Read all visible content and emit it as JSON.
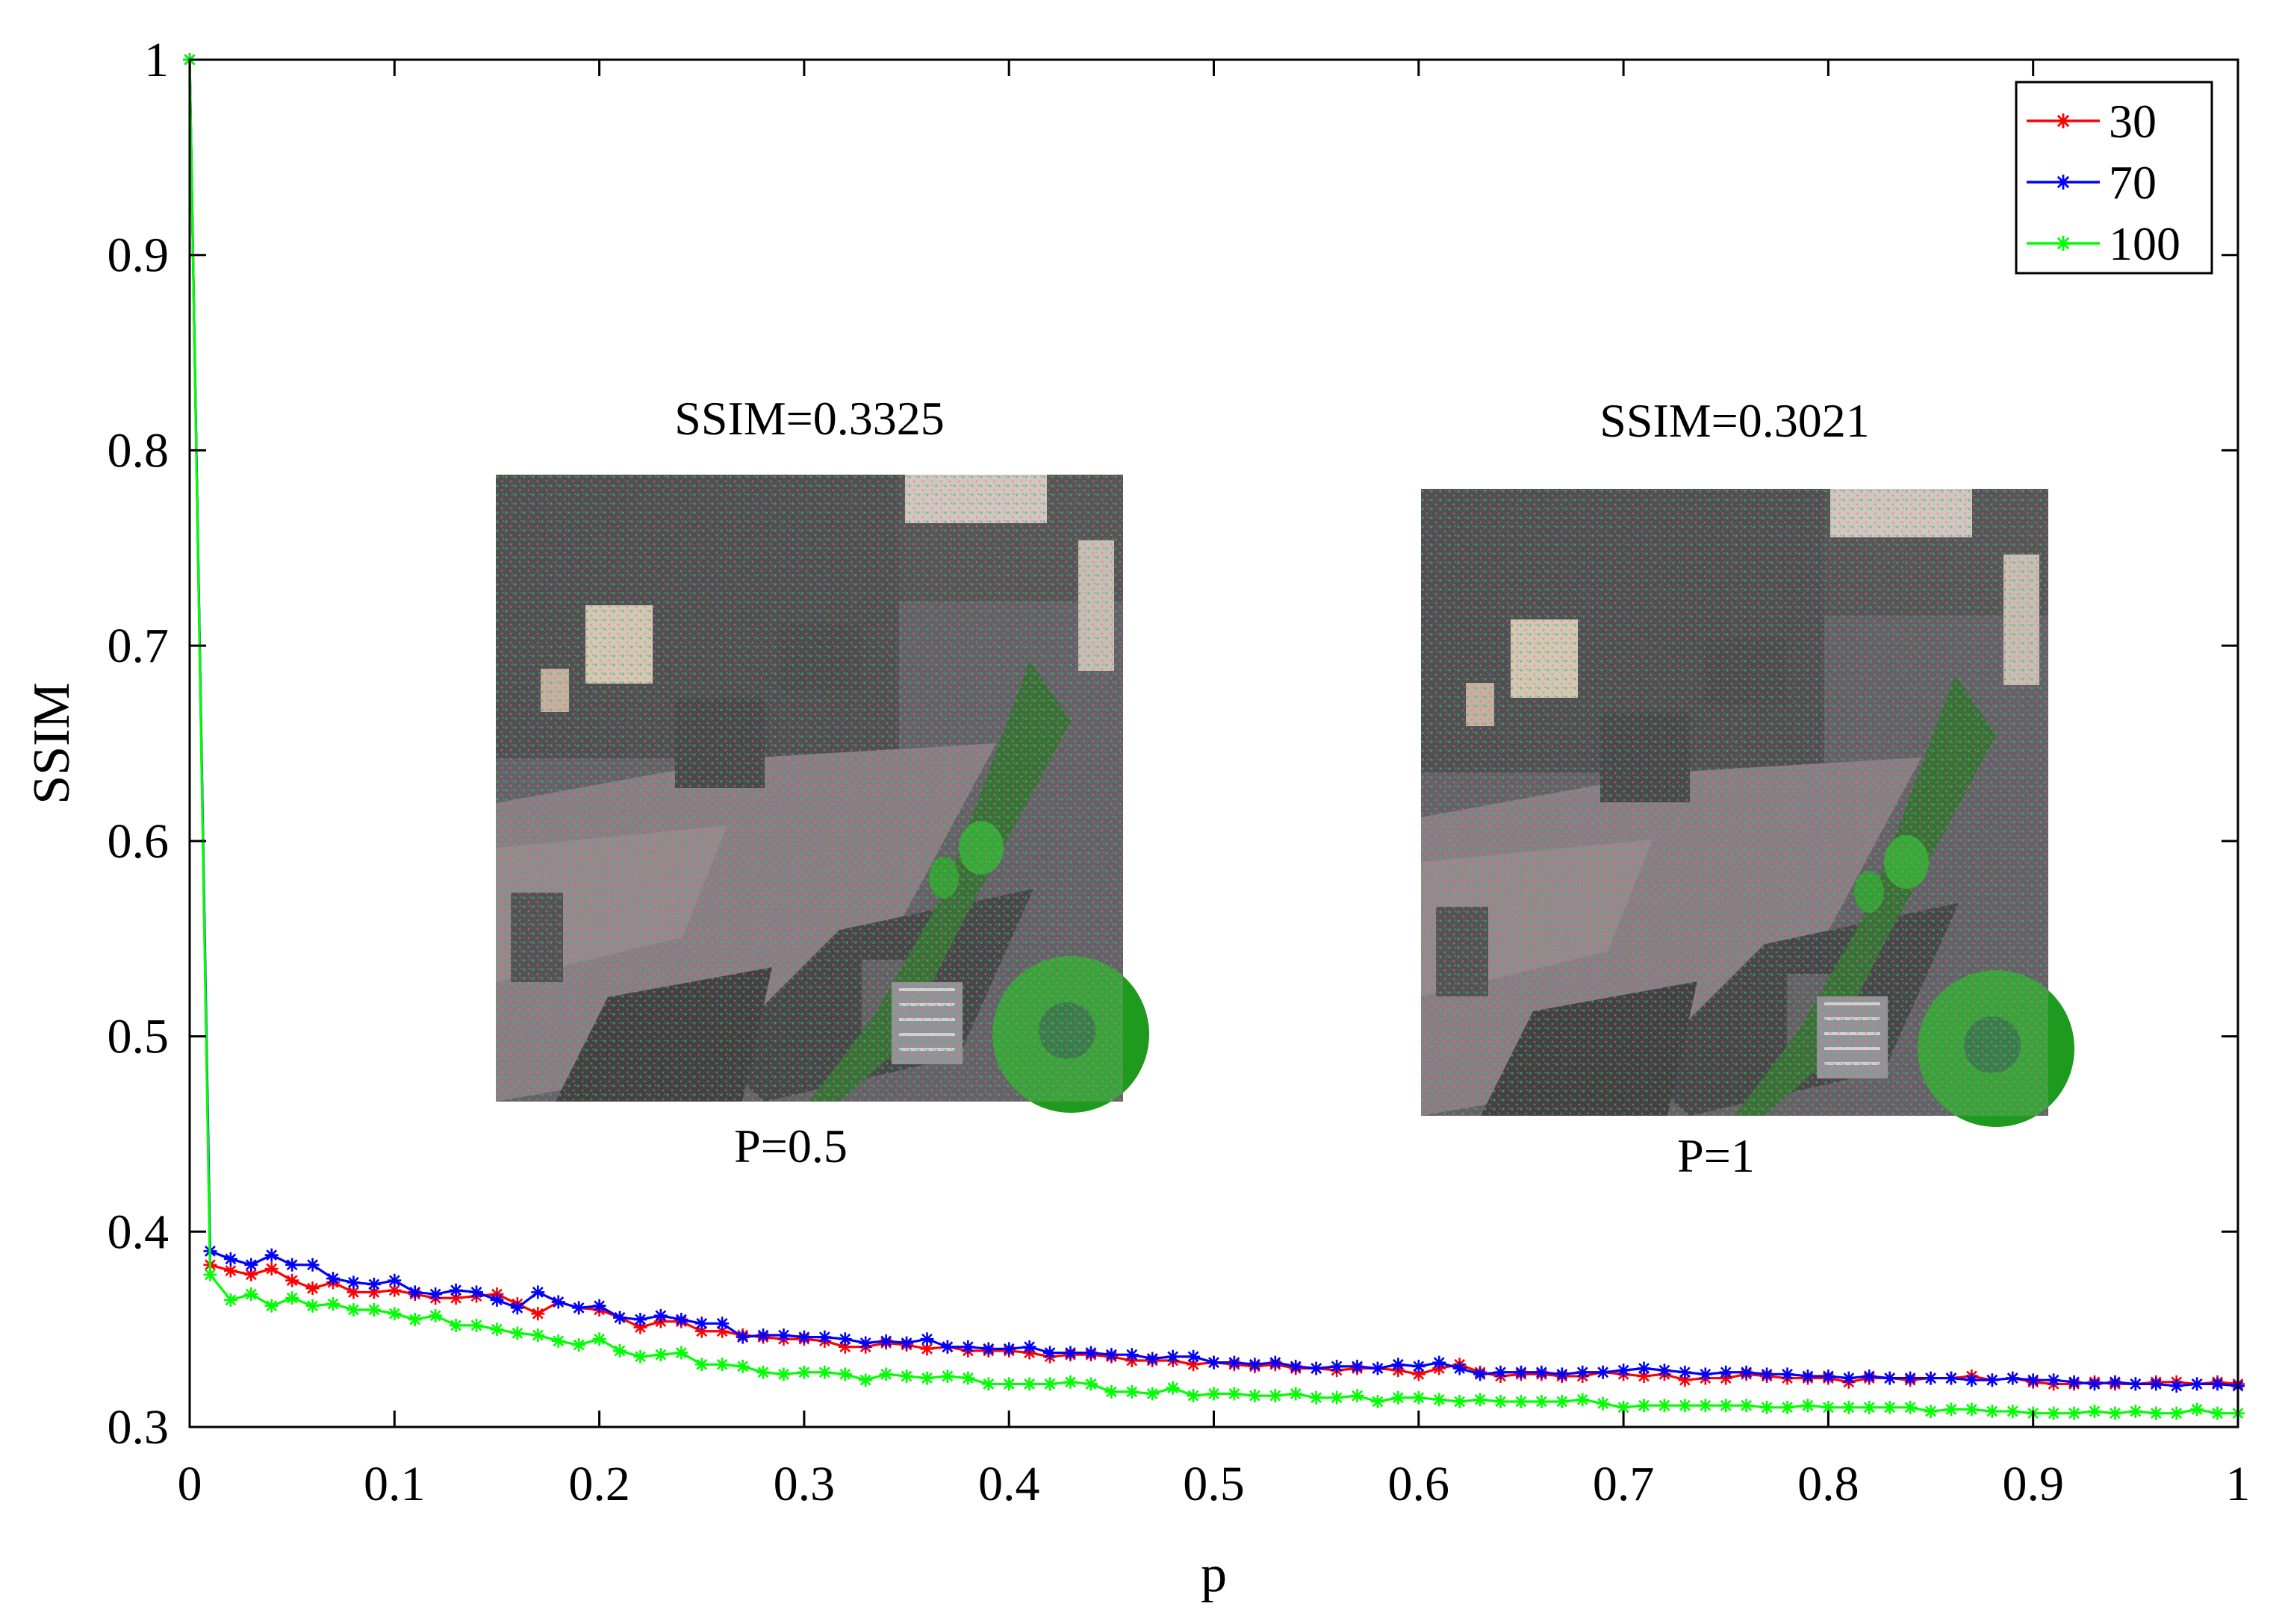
{
  "chart_data": {
    "type": "line",
    "title": "",
    "xlabel": "p",
    "ylabel": "SSIM",
    "xlim": [
      0,
      1
    ],
    "ylim": [
      0.3,
      1
    ],
    "x_ticks": [
      0,
      0.1,
      0.2,
      0.3,
      0.4,
      0.5,
      0.6,
      0.7,
      0.8,
      0.9,
      1
    ],
    "x_tick_labels": [
      "0",
      "0.1",
      "0.2",
      "0.3",
      "0.4",
      "0.5",
      "0.6",
      "0.7",
      "0.8",
      "0.9",
      "1"
    ],
    "y_ticks": [
      0.3,
      0.4,
      0.5,
      0.6,
      0.7,
      0.8,
      0.9,
      1
    ],
    "y_tick_labels": [
      "0.3",
      "0.4",
      "0.5",
      "0.6",
      "0.7",
      "0.8",
      "0.9",
      "1"
    ],
    "grid": false,
    "legend_position": "top-right",
    "marker": "asterisk",
    "series": [
      {
        "name": "30",
        "color": "#ff0000",
        "x": [
          0,
          0.01,
          0.02,
          0.03,
          0.04,
          0.05,
          0.06,
          0.07,
          0.08,
          0.09,
          0.1,
          0.11,
          0.12,
          0.13,
          0.14,
          0.15,
          0.16,
          0.17,
          0.18,
          0.19,
          0.2,
          0.21,
          0.22,
          0.23,
          0.24,
          0.25,
          0.26,
          0.27,
          0.28,
          0.29,
          0.3,
          0.31,
          0.32,
          0.33,
          0.34,
          0.35,
          0.36,
          0.37,
          0.38,
          0.39,
          0.4,
          0.41,
          0.42,
          0.43,
          0.44,
          0.45,
          0.46,
          0.47,
          0.48,
          0.49,
          0.5,
          0.51,
          0.52,
          0.53,
          0.54,
          0.55,
          0.56,
          0.57,
          0.58,
          0.59,
          0.6,
          0.61,
          0.62,
          0.63,
          0.64,
          0.65,
          0.66,
          0.67,
          0.68,
          0.69,
          0.7,
          0.71,
          0.72,
          0.73,
          0.74,
          0.75,
          0.76,
          0.77,
          0.78,
          0.79,
          0.8,
          0.81,
          0.82,
          0.83,
          0.84,
          0.85,
          0.86,
          0.87,
          0.88,
          0.89,
          0.9,
          0.91,
          0.92,
          0.93,
          0.94,
          0.95,
          0.96,
          0.97,
          0.98,
          0.99,
          1
        ],
        "values": [
          1.0,
          0.383,
          0.38,
          0.378,
          0.381,
          0.375,
          0.371,
          0.374,
          0.369,
          0.369,
          0.37,
          0.368,
          0.366,
          0.366,
          0.367,
          0.368,
          0.363,
          0.358,
          0.364,
          0.361,
          0.36,
          0.356,
          0.351,
          0.354,
          0.354,
          0.349,
          0.349,
          0.347,
          0.346,
          0.345,
          0.345,
          0.344,
          0.341,
          0.341,
          0.343,
          0.342,
          0.34,
          0.341,
          0.339,
          0.339,
          0.339,
          0.338,
          0.336,
          0.337,
          0.337,
          0.336,
          0.334,
          0.334,
          0.334,
          0.332,
          0.333,
          0.332,
          0.331,
          0.332,
          0.33,
          0.33,
          0.329,
          0.33,
          0.33,
          0.329,
          0.327,
          0.33,
          0.332,
          0.328,
          0.326,
          0.327,
          0.327,
          0.326,
          0.326,
          0.328,
          0.327,
          0.326,
          0.327,
          0.324,
          0.325,
          0.325,
          0.327,
          0.326,
          0.325,
          0.325,
          0.325,
          0.323,
          0.325,
          0.325,
          0.324,
          0.325,
          0.325,
          0.326,
          0.324,
          0.325,
          0.323,
          0.322,
          0.322,
          0.323,
          0.322,
          0.322,
          0.323,
          0.323,
          0.322,
          0.323,
          0.322
        ]
      },
      {
        "name": "70",
        "color": "#0000ff",
        "x": [
          0,
          0.01,
          0.02,
          0.03,
          0.04,
          0.05,
          0.06,
          0.07,
          0.08,
          0.09,
          0.1,
          0.11,
          0.12,
          0.13,
          0.14,
          0.15,
          0.16,
          0.17,
          0.18,
          0.19,
          0.2,
          0.21,
          0.22,
          0.23,
          0.24,
          0.25,
          0.26,
          0.27,
          0.28,
          0.29,
          0.3,
          0.31,
          0.32,
          0.33,
          0.34,
          0.35,
          0.36,
          0.37,
          0.38,
          0.39,
          0.4,
          0.41,
          0.42,
          0.43,
          0.44,
          0.45,
          0.46,
          0.47,
          0.48,
          0.49,
          0.5,
          0.51,
          0.52,
          0.53,
          0.54,
          0.55,
          0.56,
          0.57,
          0.58,
          0.59,
          0.6,
          0.61,
          0.62,
          0.63,
          0.64,
          0.65,
          0.66,
          0.67,
          0.68,
          0.69,
          0.7,
          0.71,
          0.72,
          0.73,
          0.74,
          0.75,
          0.76,
          0.77,
          0.78,
          0.79,
          0.8,
          0.81,
          0.82,
          0.83,
          0.84,
          0.85,
          0.86,
          0.87,
          0.88,
          0.89,
          0.9,
          0.91,
          0.92,
          0.93,
          0.94,
          0.95,
          0.96,
          0.97,
          0.98,
          0.99,
          1
        ],
        "values": [
          1.0,
          0.39,
          0.386,
          0.383,
          0.388,
          0.383,
          0.383,
          0.376,
          0.374,
          0.373,
          0.375,
          0.369,
          0.368,
          0.37,
          0.369,
          0.365,
          0.361,
          0.369,
          0.364,
          0.361,
          0.362,
          0.356,
          0.355,
          0.357,
          0.355,
          0.353,
          0.353,
          0.346,
          0.347,
          0.347,
          0.346,
          0.346,
          0.345,
          0.343,
          0.344,
          0.343,
          0.345,
          0.341,
          0.341,
          0.34,
          0.34,
          0.341,
          0.338,
          0.338,
          0.338,
          0.337,
          0.337,
          0.335,
          0.336,
          0.336,
          0.333,
          0.333,
          0.332,
          0.333,
          0.331,
          0.33,
          0.331,
          0.331,
          0.33,
          0.332,
          0.331,
          0.333,
          0.33,
          0.327,
          0.328,
          0.328,
          0.328,
          0.327,
          0.328,
          0.328,
          0.329,
          0.33,
          0.329,
          0.328,
          0.327,
          0.328,
          0.328,
          0.327,
          0.327,
          0.326,
          0.326,
          0.325,
          0.326,
          0.325,
          0.325,
          0.325,
          0.325,
          0.324,
          0.324,
          0.325,
          0.324,
          0.324,
          0.323,
          0.322,
          0.323,
          0.322,
          0.322,
          0.321,
          0.322,
          0.322,
          0.321
        ]
      },
      {
        "name": "100",
        "color": "#00ff00",
        "x": [
          0,
          0.01,
          0.02,
          0.03,
          0.04,
          0.05,
          0.06,
          0.07,
          0.08,
          0.09,
          0.1,
          0.11,
          0.12,
          0.13,
          0.14,
          0.15,
          0.16,
          0.17,
          0.18,
          0.19,
          0.2,
          0.21,
          0.22,
          0.23,
          0.24,
          0.25,
          0.26,
          0.27,
          0.28,
          0.29,
          0.3,
          0.31,
          0.32,
          0.33,
          0.34,
          0.35,
          0.36,
          0.37,
          0.38,
          0.39,
          0.4,
          0.41,
          0.42,
          0.43,
          0.44,
          0.45,
          0.46,
          0.47,
          0.48,
          0.49,
          0.5,
          0.51,
          0.52,
          0.53,
          0.54,
          0.55,
          0.56,
          0.57,
          0.58,
          0.59,
          0.6,
          0.61,
          0.62,
          0.63,
          0.64,
          0.65,
          0.66,
          0.67,
          0.68,
          0.69,
          0.7,
          0.71,
          0.72,
          0.73,
          0.74,
          0.75,
          0.76,
          0.77,
          0.78,
          0.79,
          0.8,
          0.81,
          0.82,
          0.83,
          0.84,
          0.85,
          0.86,
          0.87,
          0.88,
          0.89,
          0.9,
          0.91,
          0.92,
          0.93,
          0.94,
          0.95,
          0.96,
          0.97,
          0.98,
          0.99,
          1
        ],
        "values": [
          1.0,
          0.378,
          0.365,
          0.368,
          0.362,
          0.366,
          0.362,
          0.363,
          0.36,
          0.36,
          0.358,
          0.355,
          0.357,
          0.352,
          0.352,
          0.35,
          0.348,
          0.347,
          0.344,
          0.342,
          0.345,
          0.339,
          0.336,
          0.337,
          0.338,
          0.332,
          0.332,
          0.331,
          0.328,
          0.327,
          0.328,
          0.328,
          0.327,
          0.324,
          0.327,
          0.326,
          0.325,
          0.326,
          0.325,
          0.322,
          0.322,
          0.322,
          0.322,
          0.323,
          0.322,
          0.318,
          0.318,
          0.317,
          0.32,
          0.316,
          0.317,
          0.317,
          0.316,
          0.316,
          0.317,
          0.315,
          0.315,
          0.316,
          0.313,
          0.315,
          0.315,
          0.314,
          0.313,
          0.314,
          0.313,
          0.313,
          0.313,
          0.313,
          0.314,
          0.312,
          0.31,
          0.311,
          0.311,
          0.311,
          0.311,
          0.311,
          0.311,
          0.31,
          0.31,
          0.311,
          0.31,
          0.31,
          0.31,
          0.31,
          0.31,
          0.308,
          0.309,
          0.309,
          0.308,
          0.308,
          0.307,
          0.307,
          0.307,
          0.308,
          0.307,
          0.308,
          0.307,
          0.307,
          0.309,
          0.307,
          0.307
        ]
      }
    ],
    "insets": [
      {
        "caption_top": "SSIM=0.3325",
        "caption_bottom": "P=0.5",
        "description_type": "noisy aerial image"
      },
      {
        "caption_top": "SSIM=0.3021",
        "caption_bottom": "P=1",
        "description_type": "noisy aerial image"
      }
    ]
  }
}
